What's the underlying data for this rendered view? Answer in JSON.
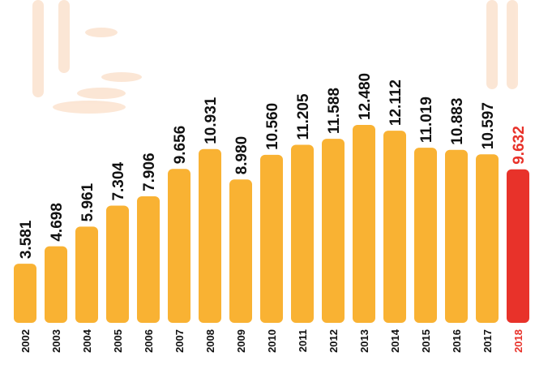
{
  "chart_data": {
    "type": "bar",
    "categories": [
      "2002",
      "2003",
      "2004",
      "2005",
      "2006",
      "2007",
      "2008",
      "2009",
      "2010",
      "2011",
      "2012",
      "2013",
      "2014",
      "2015",
      "2016",
      "2017",
      "2018"
    ],
    "values": [
      3581,
      4698,
      5961,
      7304,
      7906,
      9656,
      10931,
      8980,
      10560,
      11205,
      11588,
      12480,
      12112,
      11019,
      10883,
      10597,
      9632
    ],
    "value_labels": [
      "3.581",
      "4.698",
      "5.961",
      "7.304",
      "7.906",
      "9.656",
      "10.931",
      "8.980",
      "10.560",
      "11.205",
      "11.588",
      "12.480",
      "12.112",
      "11.019",
      "10.883",
      "10.597",
      "9.632"
    ],
    "colors": [
      "#f9b233",
      "#f9b233",
      "#f9b233",
      "#f9b233",
      "#f9b233",
      "#f9b233",
      "#f9b233",
      "#f9b233",
      "#f9b233",
      "#f9b233",
      "#f9b233",
      "#f9b233",
      "#f9b233",
      "#f9b233",
      "#f9b233",
      "#f9b233",
      "#e8322a"
    ],
    "label_colors": [
      "#111111",
      "#111111",
      "#111111",
      "#111111",
      "#111111",
      "#111111",
      "#111111",
      "#111111",
      "#111111",
      "#111111",
      "#111111",
      "#111111",
      "#111111",
      "#111111",
      "#111111",
      "#111111",
      "#e8322a"
    ]
  }
}
